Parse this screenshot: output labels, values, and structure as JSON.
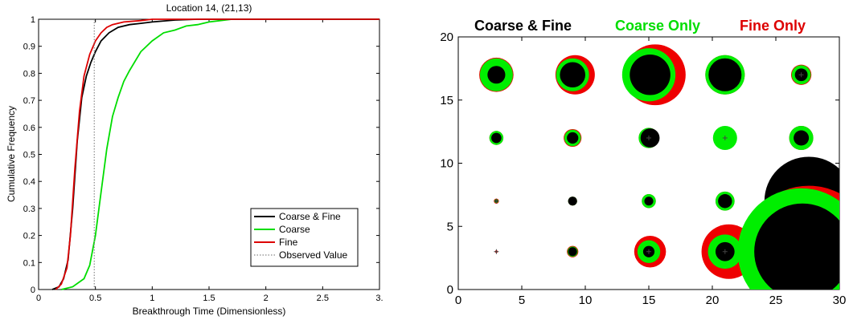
{
  "chart_data": [
    {
      "type": "line",
      "title": "Location 14,  (21,13)",
      "xlabel": "Breakthrough Time (Dimensionless)",
      "ylabel": "Cumulative Frequency",
      "xlim": [
        0,
        3
      ],
      "ylim": [
        0,
        1
      ],
      "xticks": [
        "0",
        "0.5",
        "1",
        "1.5",
        "2",
        "2.5",
        "3."
      ],
      "yticks": [
        "0",
        "0.1",
        "0.2",
        "0.3",
        "0.4",
        "0.5",
        "0.6",
        "0.7",
        "0.8",
        "0.9",
        "1"
      ],
      "legend": {
        "placement": "bottom-right",
        "entries": [
          "Coarse & Fine",
          "Coarse",
          "Fine",
          "Observed Value"
        ]
      },
      "observed_value": 0.49,
      "series": [
        {
          "name": "Coarse & Fine",
          "color": "#000000",
          "x": [
            0.12,
            0.18,
            0.22,
            0.26,
            0.3,
            0.34,
            0.38,
            0.42,
            0.46,
            0.5,
            0.55,
            0.62,
            0.7,
            0.8,
            0.9,
            1.0,
            1.2,
            1.4
          ],
          "y": [
            0.0,
            0.01,
            0.04,
            0.11,
            0.3,
            0.55,
            0.71,
            0.79,
            0.84,
            0.88,
            0.92,
            0.95,
            0.97,
            0.98,
            0.985,
            0.99,
            0.997,
            1.0
          ]
        },
        {
          "name": "Coarse",
          "color": "#00dd00",
          "x": [
            0.2,
            0.3,
            0.4,
            0.45,
            0.5,
            0.55,
            0.6,
            0.65,
            0.7,
            0.75,
            0.8,
            0.9,
            1.0,
            1.1,
            1.2,
            1.3,
            1.4,
            1.5,
            1.6,
            1.7,
            2.0
          ],
          "y": [
            0.0,
            0.01,
            0.04,
            0.09,
            0.2,
            0.36,
            0.52,
            0.64,
            0.71,
            0.77,
            0.81,
            0.88,
            0.92,
            0.95,
            0.96,
            0.975,
            0.98,
            0.99,
            0.995,
            1.0,
            1.0
          ]
        },
        {
          "name": "Fine",
          "color": "#dd0000",
          "x": [
            0.15,
            0.2,
            0.25,
            0.28,
            0.32,
            0.36,
            0.4,
            0.45,
            0.5,
            0.55,
            0.6,
            0.65,
            0.75,
            0.9,
            1.0
          ],
          "y": [
            0.0,
            0.02,
            0.08,
            0.2,
            0.45,
            0.66,
            0.79,
            0.87,
            0.92,
            0.95,
            0.97,
            0.98,
            0.99,
            0.995,
            1.0
          ]
        }
      ]
    },
    {
      "type": "scatter",
      "title": "",
      "xlabel": "",
      "ylabel": "",
      "xlim": [
        0,
        30
      ],
      "ylim": [
        0,
        20
      ],
      "xticks": [
        "0",
        "5",
        "10",
        "15",
        "20",
        "25",
        "30"
      ],
      "yticks": [
        "0",
        "5",
        "10",
        "15",
        "20"
      ],
      "legend": {
        "placement": "top",
        "entries": [
          {
            "label": "Coarse & Fine",
            "color": "#000000"
          },
          {
            "label": "Coarse Only",
            "color": "#00dd00"
          },
          {
            "label": "Fine Only",
            "color": "#dd0000"
          }
        ]
      },
      "points": [
        {
          "x": 3,
          "y": 17,
          "red": 1.35,
          "green": 1.3,
          "black": 0.7
        },
        {
          "x": 9,
          "y": 17,
          "red": 1.55,
          "green": 1.3,
          "black": 1.0,
          "rdx": 0.2
        },
        {
          "x": 15,
          "y": 17,
          "red": 2.4,
          "green": 2.1,
          "black": 1.6,
          "rdx": 0.5,
          "bdx": 0.1
        },
        {
          "x": 21,
          "y": 17,
          "red": 1.55,
          "green": 1.55,
          "black": 1.3
        },
        {
          "x": 27,
          "y": 17,
          "red": 0.8,
          "green": 0.75,
          "black": 0.5,
          "cross": true
        },
        {
          "x": 3,
          "y": 12,
          "red": 0.55,
          "green": 0.55,
          "black": 0.4
        },
        {
          "x": 9,
          "y": 12,
          "red": 0.7,
          "green": 0.65,
          "black": 0.45
        },
        {
          "x": 15,
          "y": 12,
          "red": 0.8,
          "green": 0.8,
          "black": 0.75,
          "bdx": 0.1,
          "cross": true
        },
        {
          "x": 21,
          "y": 12,
          "red": 0.65,
          "green": 0.95,
          "black": 0.0,
          "cross": true
        },
        {
          "x": 27,
          "y": 12,
          "red": 0.95,
          "green": 0.95,
          "black": 0.6
        },
        {
          "x": 3,
          "y": 7,
          "red": 0.2,
          "green": 0.15,
          "black": 0.1,
          "cross": true
        },
        {
          "x": 9,
          "y": 7,
          "red": 0.35,
          "green": 0.35,
          "black": 0.35
        },
        {
          "x": 15,
          "y": 7,
          "red": 0.55,
          "green": 0.55,
          "black": 0.35
        },
        {
          "x": 21,
          "y": 7,
          "red": 0.75,
          "green": 0.75,
          "black": 0.55
        },
        {
          "x": 27,
          "y": 7,
          "red": 2.7,
          "green": 2.4,
          "black": 3.5,
          "bdx": 0.6,
          "gdx": -0.2,
          "cross": true
        },
        {
          "x": 3,
          "y": 3,
          "red": 0.1,
          "green": 0.05,
          "black": 0.05,
          "cross": true
        },
        {
          "x": 9,
          "y": 3,
          "red": 0.45,
          "green": 0.4,
          "black": 0.35
        },
        {
          "x": 15,
          "y": 3,
          "red": 1.25,
          "green": 0.9,
          "black": 0.45,
          "rdx": 0.1,
          "cross": true
        },
        {
          "x": 21,
          "y": 3,
          "red": 2.15,
          "green": 1.35,
          "black": 0.75,
          "rdx": 0.3,
          "cross": true
        },
        {
          "x": 27,
          "y": 3,
          "red": 5.2,
          "green": 5.0,
          "black": 3.8,
          "rdx": 0.6,
          "bdx": 0.1
        }
      ]
    }
  ]
}
